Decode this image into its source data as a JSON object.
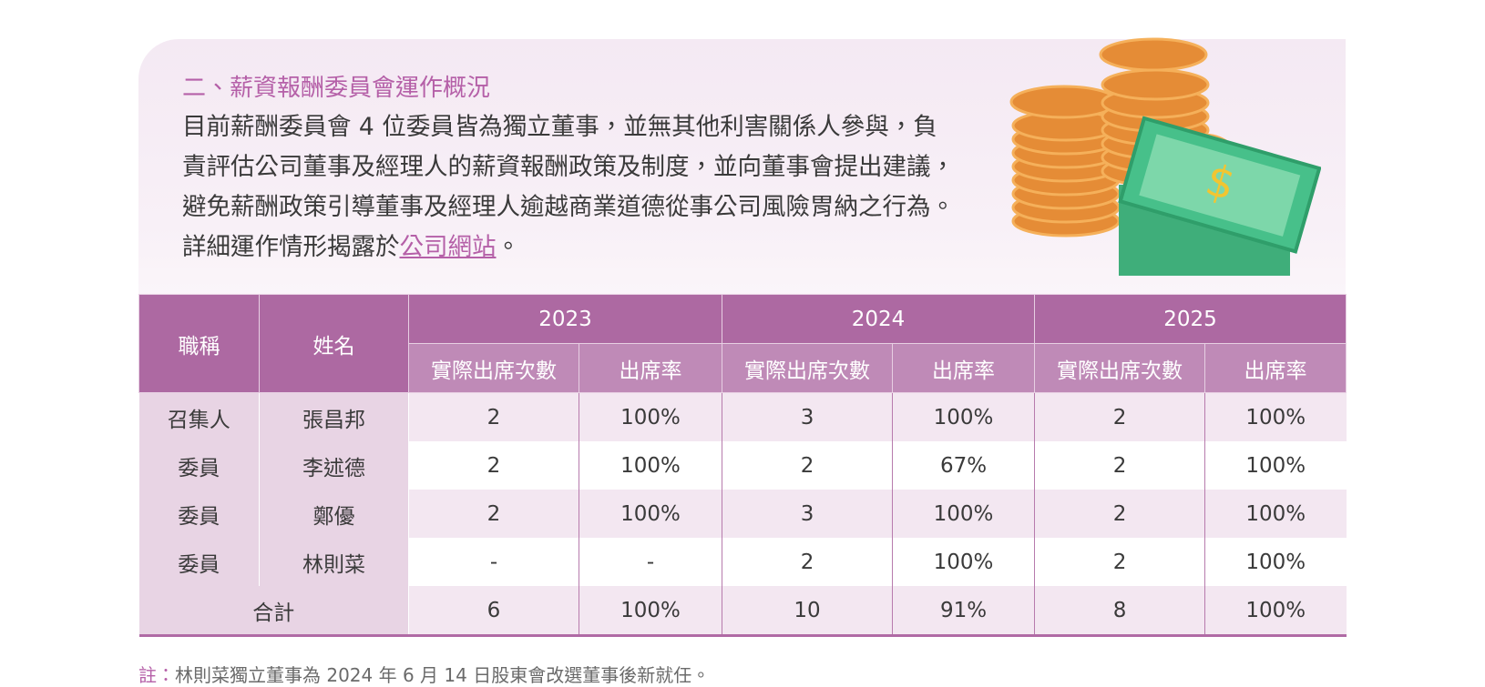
{
  "section": {
    "title": "二、薪資報酬委員會運作概況",
    "body": "目前薪酬委員會 4 位委員皆為獨立董事，並無其他利害關係人參與，負責評估公司董事及經理人的薪資報酬政策及制度，並向董事會提出建議，避免薪酬政策引導董事及經理人逾越商業道德從事公司風險胃納之行為。詳細運作情形揭露於",
    "link": "公司網站",
    "body_end": "。"
  },
  "table": {
    "header": {
      "title_col": "職稱",
      "name_col": "姓名",
      "years": [
        "2023",
        "2024",
        "2025"
      ],
      "sub": [
        "實際出席次數",
        "出席率"
      ]
    },
    "rows": [
      [
        "召集人",
        "張昌邦",
        "2",
        "100%",
        "3",
        "100%",
        "2",
        "100%"
      ],
      [
        "委員",
        "李述德",
        "2",
        "100%",
        "2",
        "67%",
        "2",
        "100%"
      ],
      [
        "委員",
        "鄭優",
        "2",
        "100%",
        "3",
        "100%",
        "2",
        "100%"
      ],
      [
        "委員",
        "林則菜",
        "-",
        "-",
        "2",
        "100%",
        "2",
        "100%"
      ]
    ],
    "total": {
      "label": "合計",
      "values": [
        "6",
        "100%",
        "10",
        "91%",
        "8",
        "100%"
      ]
    }
  },
  "note": {
    "label": "註：",
    "text": "林則菜獨立董事為 2024 年 6 月 14 日股東會改選董事後新就任。"
  }
}
